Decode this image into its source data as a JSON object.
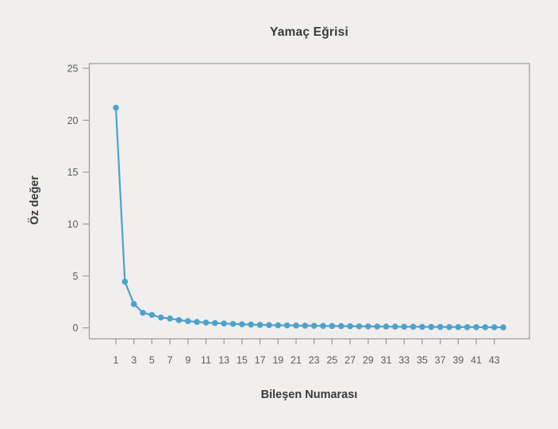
{
  "chart_data": {
    "type": "line",
    "title": "Yamaç Eğrisi",
    "xlabel": "Bileşen Numarası",
    "ylabel": "Öz değer",
    "x": [
      1,
      2,
      3,
      4,
      5,
      6,
      7,
      8,
      9,
      10,
      11,
      12,
      13,
      14,
      15,
      16,
      17,
      18,
      19,
      20,
      21,
      22,
      23,
      24,
      25,
      26,
      27,
      28,
      29,
      30,
      31,
      32,
      33,
      34,
      35,
      36,
      37,
      38,
      39,
      40,
      41,
      42,
      43,
      44
    ],
    "values": [
      21.2,
      4.45,
      2.3,
      1.45,
      1.25,
      1.0,
      0.9,
      0.75,
      0.65,
      0.57,
      0.51,
      0.46,
      0.42,
      0.38,
      0.35,
      0.32,
      0.29,
      0.27,
      0.25,
      0.24,
      0.22,
      0.21,
      0.2,
      0.19,
      0.18,
      0.17,
      0.16,
      0.15,
      0.14,
      0.13,
      0.13,
      0.12,
      0.11,
      0.11,
      0.1,
      0.09,
      0.09,
      0.08,
      0.08,
      0.07,
      0.07,
      0.06,
      0.06,
      0.05
    ],
    "xticks": [
      1,
      3,
      5,
      7,
      9,
      11,
      13,
      15,
      17,
      19,
      21,
      23,
      25,
      27,
      29,
      31,
      33,
      35,
      37,
      39,
      41,
      43
    ],
    "yticks": [
      0,
      5,
      10,
      15,
      20,
      25
    ],
    "xlim": [
      -2,
      47
    ],
    "ylim": [
      -1.05,
      25.45
    ],
    "grid": false,
    "legend": false,
    "markers": true,
    "line_color": "#4ea1cc",
    "marker_color": "#4ea1cc",
    "background_color": "#f0efed",
    "frame_color": "#9a9a9a",
    "title_color": "#3b3b3b",
    "tick_label_color": "#5d5d5d"
  }
}
